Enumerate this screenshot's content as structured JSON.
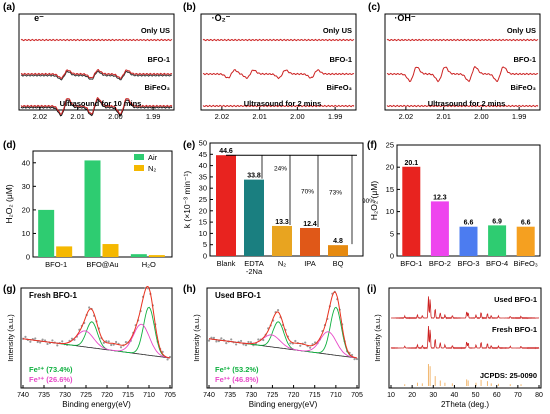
{
  "chart_data": [
    {
      "panel": "(a)",
      "type": "line",
      "title": "e⁻",
      "xlabel": "",
      "ylabel": "",
      "x_ticks": [
        "2.02",
        "2.01",
        "2.00",
        "1.99"
      ],
      "xlim": [
        2.025,
        1.985
      ],
      "series": [
        {
          "name": "Only US",
          "color": "#cc2222",
          "baseline_color": "#333333",
          "peaks": [],
          "amplitude": 0
        },
        {
          "name": "BFO-1",
          "color": "#cc2222",
          "baseline_color": "#333333",
          "peaks": [
            2.0135,
            2.0055,
            1.9978
          ],
          "amplitude": 0.5
        },
        {
          "name": "BiFeO₃",
          "color": "#cc2222",
          "baseline_color": "#111111",
          "peaks": [
            2.0135,
            2.0055,
            1.9978
          ],
          "amplitude": 1.0
        }
      ],
      "annotations": [
        "Ultrasound for 10 mins"
      ]
    },
    {
      "panel": "(b)",
      "type": "line",
      "title": "·O₂⁻",
      "xlabel": "",
      "ylabel": "",
      "x_ticks": [
        "2.02",
        "2.01",
        "2.00",
        "1.99"
      ],
      "xlim": [
        2.025,
        1.985
      ],
      "series": [
        {
          "name": "Only US",
          "color": "#cc2222",
          "peaks": [],
          "amplitude": 0
        },
        {
          "name": "BFO-1",
          "color": "#cc2222",
          "peaks": [
            2.0175,
            2.0125,
            2.004,
            1.9955
          ],
          "amplitude": 0.5
        },
        {
          "name": "BiFeO₃",
          "color": "#cc2222",
          "peaks": [],
          "amplitude": 0
        }
      ],
      "annotations": [
        "Ultrasound for 2 mins"
      ]
    },
    {
      "panel": "(c)",
      "type": "line",
      "title": "·OH⁻",
      "xlabel": "",
      "ylabel": "",
      "x_ticks": [
        "2.02",
        "2.01",
        "2.00",
        "1.99"
      ],
      "xlim": [
        2.025,
        1.985
      ],
      "series": [
        {
          "name": "Only US",
          "color": "#cc2222",
          "peaks": [],
          "amplitude": 0
        },
        {
          "name": "BFO-1",
          "color": "#cc2222",
          "peaks": [
            2.018,
            2.0105,
            2.0025,
            1.995
          ],
          "amplitude": 0.9
        },
        {
          "name": "BiFeO₃",
          "color": "#cc2222",
          "peaks": [],
          "amplitude": 0
        }
      ],
      "annotations": [
        "Ultrasound for 2 mins"
      ]
    },
    {
      "panel": "(d)",
      "type": "bar",
      "ylabel": "H₂O₂ (μM)",
      "ylim": [
        0,
        45
      ],
      "y_ticks": [
        0,
        10,
        20,
        30,
        40
      ],
      "categories": [
        "BFO-1",
        "BFO@Au",
        "H₂O"
      ],
      "series": [
        {
          "name": "Air",
          "color": "#2ecc71",
          "values": [
            20.0,
            41.0,
            1.2
          ]
        },
        {
          "name": "N₂",
          "color": "#f5b800",
          "values": [
            4.5,
            5.5,
            0.8
          ]
        }
      ],
      "legend": "top-right"
    },
    {
      "panel": "(e)",
      "type": "bar",
      "ylabel": "k (×10⁻³ min⁻¹)",
      "ylim": [
        0,
        50
      ],
      "y_ticks": [
        0,
        5,
        10,
        15,
        20,
        25,
        30,
        35,
        40,
        45,
        50
      ],
      "categories": [
        "Blank",
        "EDTA\n-2Na",
        "N₂",
        "IPA",
        "BQ"
      ],
      "values": [
        44.6,
        33.8,
        13.3,
        12.4,
        4.8
      ],
      "value_labels": [
        "44.6",
        "33.8",
        "13.3",
        "12.4",
        "4.8"
      ],
      "colors": [
        "#e8231f",
        "#1a7f80",
        "#e8a420",
        "#e05818",
        "#e68a10"
      ],
      "annotations": [
        "24%",
        "70%",
        "73%",
        "90%"
      ]
    },
    {
      "panel": "(f)",
      "type": "bar",
      "ylabel": "H₂O₂ (μM)",
      "ylim": [
        0,
        25
      ],
      "y_ticks": [
        0,
        5,
        10,
        15,
        20,
        25
      ],
      "categories": [
        "BFO-1",
        "BFO-2",
        "BFO-3",
        "BFO-4",
        "BiFeO₃"
      ],
      "values": [
        20.1,
        12.3,
        6.6,
        6.9,
        6.6
      ],
      "value_labels": [
        "20.1",
        "12.3",
        "6.6",
        "6.9",
        "6.6"
      ],
      "colors": [
        "#e8231f",
        "#ee44ee",
        "#4c7cf0",
        "#2ecc71",
        "#f5a020"
      ]
    },
    {
      "panel": "(g)",
      "type": "line",
      "title": "Fresh BFO-1",
      "xlabel": "Binding energy(eV)",
      "ylabel": "Intensity (a.u.)",
      "x_ticks": [
        740,
        735,
        730,
        725,
        720,
        715,
        710,
        705
      ],
      "xlim": [
        740,
        705
      ],
      "peaks": [
        {
          "name": "Fe²⁺ (73.4%)",
          "color": "#10b040",
          "centers": [
            710.0,
            723.6
          ]
        },
        {
          "name": "Fe³⁺ (26.6%)",
          "color": "#e84ac8",
          "centers": [
            711.8,
            725.2
          ]
        }
      ]
    },
    {
      "panel": "(h)",
      "type": "line",
      "title": "Used BFO-1",
      "xlabel": "Binding energy(eV)",
      "ylabel": "Intensity (a.u.)",
      "x_ticks": [
        740,
        735,
        730,
        725,
        720,
        715,
        710,
        705
      ],
      "xlim": [
        740,
        705
      ],
      "peaks": [
        {
          "name": "Fe²⁺ (53.2%)",
          "color": "#10b040",
          "centers": [
            710.0,
            723.6
          ]
        },
        {
          "name": "Fe³⁺ (46.8%)",
          "color": "#e84ac8",
          "centers": [
            711.8,
            725.2
          ]
        }
      ]
    },
    {
      "panel": "(i)",
      "type": "line",
      "xlabel": "2Theta (deg.)",
      "ylabel": "Intensity (a.u.)",
      "x_ticks": [
        10,
        20,
        30,
        40,
        50,
        60,
        70,
        80
      ],
      "xlim": [
        10,
        80
      ],
      "series": [
        {
          "name": "Used BFO-1",
          "color": "#cc2222"
        },
        {
          "name": "Fresh BFO-1",
          "color": "#cc2222"
        },
        {
          "name": "JCPDS: 25-0090",
          "color": "#f0b060"
        }
      ],
      "reflections": [
        {
          "x": 27.7,
          "h": 1.0
        },
        {
          "x": 28.5,
          "h": 0.9
        },
        {
          "x": 30.9,
          "h": 0.45
        },
        {
          "x": 33.3,
          "h": 0.25
        },
        {
          "x": 22.5,
          "h": 0.15
        },
        {
          "x": 24.8,
          "h": 0.12
        },
        {
          "x": 35.5,
          "h": 0.15
        },
        {
          "x": 39.0,
          "h": 0.12
        },
        {
          "x": 45.8,
          "h": 0.3
        },
        {
          "x": 46.5,
          "h": 0.25
        },
        {
          "x": 50.2,
          "h": 0.15
        },
        {
          "x": 52.6,
          "h": 0.28
        },
        {
          "x": 55.6,
          "h": 0.22
        },
        {
          "x": 57.4,
          "h": 0.12
        },
        {
          "x": 60.8,
          "h": 0.1
        },
        {
          "x": 66.4,
          "h": 0.08
        },
        {
          "x": 71.5,
          "h": 0.08
        },
        {
          "x": 16.5,
          "h": 0.08
        }
      ]
    }
  ]
}
